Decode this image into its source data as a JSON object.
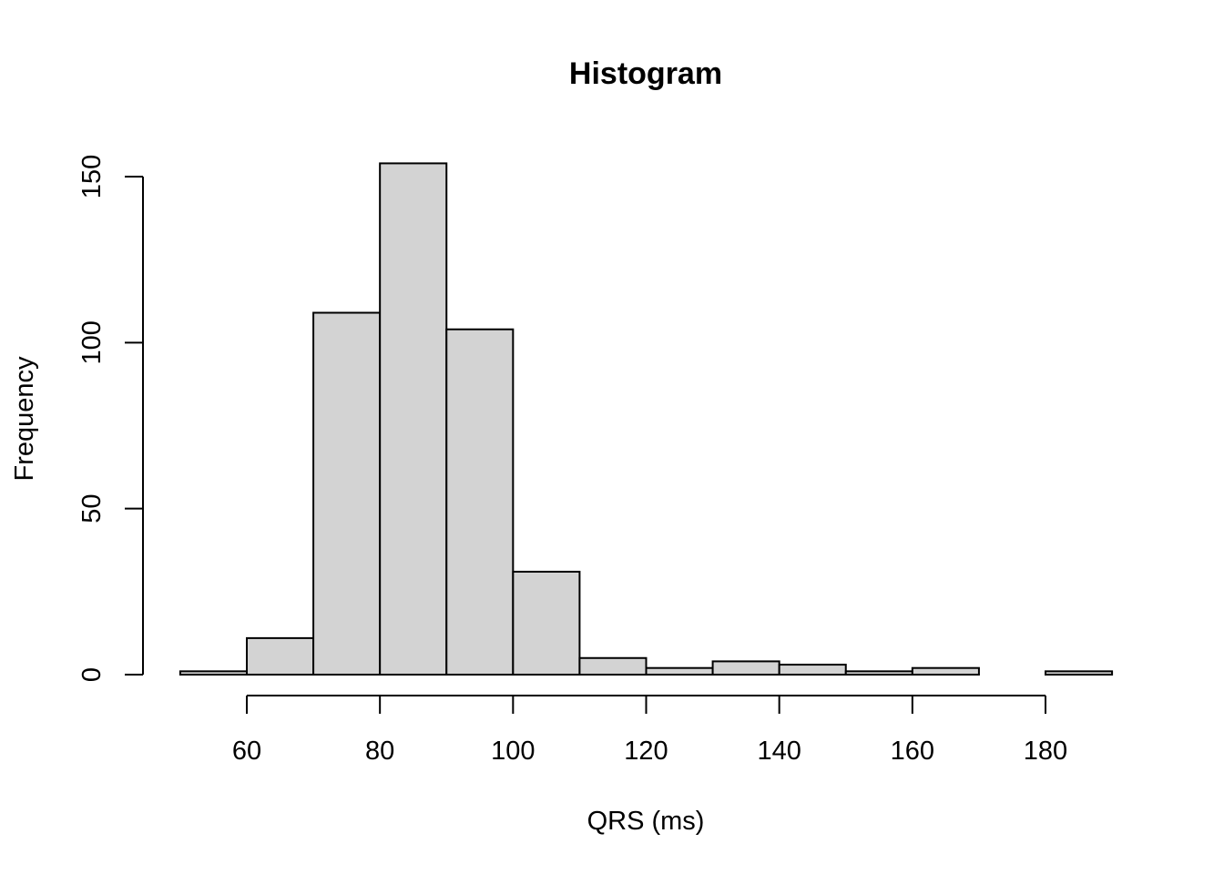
{
  "chart_data": {
    "type": "bar",
    "title": "Histogram",
    "xlabel": "QRS (ms)",
    "ylabel": "Frequency",
    "bin_edges": [
      50,
      60,
      70,
      80,
      90,
      100,
      110,
      120,
      130,
      140,
      150,
      160,
      170,
      180,
      190
    ],
    "values": [
      1,
      11,
      109,
      154,
      104,
      31,
      5,
      2,
      4,
      3,
      1,
      2,
      0,
      1
    ],
    "x_ticks": [
      60,
      80,
      100,
      120,
      140,
      160,
      180
    ],
    "x_tick_labels": [
      "60",
      "80",
      "100",
      "120",
      "140",
      "160",
      "180"
    ],
    "y_ticks": [
      0,
      50,
      100,
      150
    ],
    "y_tick_labels": [
      "0",
      "50",
      "100",
      "150"
    ],
    "xlim": [
      50,
      190
    ],
    "ylim": [
      0,
      150
    ],
    "bar_fill": "#d3d3d3",
    "bar_stroke": "#000000",
    "grid": false,
    "legend": "none"
  }
}
